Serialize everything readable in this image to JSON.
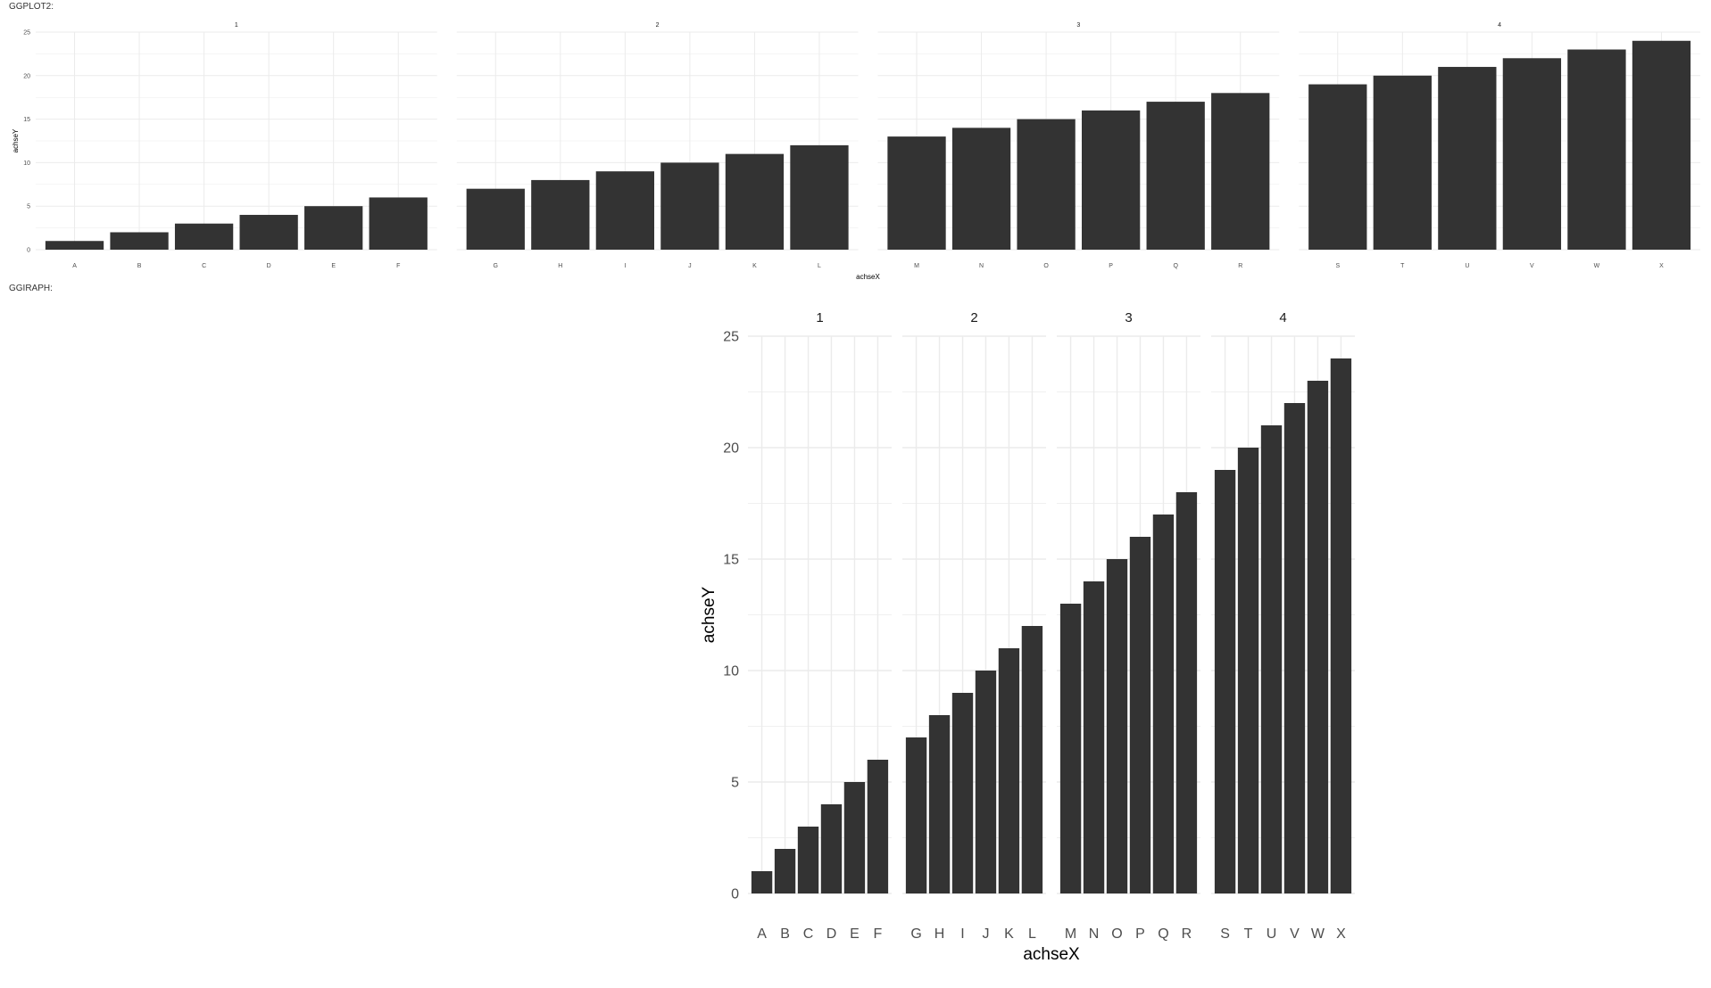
{
  "sections": {
    "ggplot2_label": "GGPLOT2:",
    "ggiraph_label": "GGIRAPH:"
  },
  "colors": {
    "bar": "#333333",
    "grid": "#ebebeb",
    "text": "#4d4d4d"
  },
  "chart_data": [
    {
      "type": "bar",
      "renderer": "ggplot2",
      "facets": [
        {
          "label": "1",
          "categories": [
            "A",
            "B",
            "C",
            "D",
            "E",
            "F"
          ],
          "values": [
            1,
            2,
            3,
            4,
            5,
            6
          ]
        },
        {
          "label": "2",
          "categories": [
            "G",
            "H",
            "I",
            "J",
            "K",
            "L"
          ],
          "values": [
            7,
            8,
            9,
            10,
            11,
            12
          ]
        },
        {
          "label": "3",
          "categories": [
            "M",
            "N",
            "O",
            "P",
            "Q",
            "R"
          ],
          "values": [
            13,
            14,
            15,
            16,
            17,
            18
          ]
        },
        {
          "label": "4",
          "categories": [
            "S",
            "T",
            "U",
            "V",
            "W",
            "X"
          ],
          "values": [
            19,
            20,
            21,
            22,
            23,
            24
          ]
        }
      ],
      "xlabel": "achseX",
      "ylabel": "achseY",
      "ylim": [
        0,
        25
      ],
      "yticks": [
        "0",
        "5",
        "10",
        "15",
        "20",
        "25"
      ],
      "grid": true
    },
    {
      "type": "bar",
      "renderer": "ggiraph",
      "facets": [
        {
          "label": "1",
          "categories": [
            "A",
            "B",
            "C",
            "D",
            "E",
            "F"
          ],
          "values": [
            1,
            2,
            3,
            4,
            5,
            6
          ]
        },
        {
          "label": "2",
          "categories": [
            "G",
            "H",
            "I",
            "J",
            "K",
            "L"
          ],
          "values": [
            7,
            8,
            9,
            10,
            11,
            12
          ]
        },
        {
          "label": "3",
          "categories": [
            "M",
            "N",
            "O",
            "P",
            "Q",
            "R"
          ],
          "values": [
            13,
            14,
            15,
            16,
            17,
            18
          ]
        },
        {
          "label": "4",
          "categories": [
            "S",
            "T",
            "U",
            "V",
            "W",
            "X"
          ],
          "values": [
            19,
            20,
            21,
            22,
            23,
            24
          ]
        }
      ],
      "xlabel": "achseX",
      "ylabel": "achseY",
      "ylim": [
        0,
        25
      ],
      "yticks": [
        "0",
        "5",
        "10",
        "15",
        "20",
        "25"
      ],
      "grid": true
    }
  ]
}
